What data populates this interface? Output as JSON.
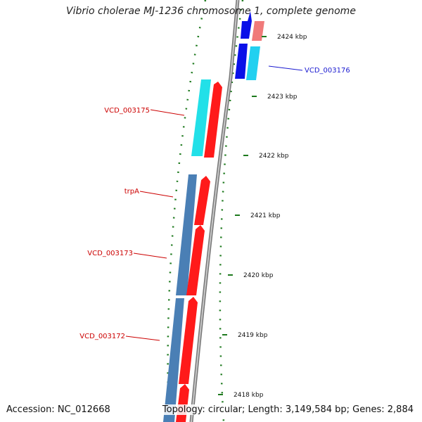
{
  "title": "Vibrio cholerae MJ-1236 chromosome 1, complete genome",
  "accession": "Accession: NC_012668",
  "topology": "Topology: circular; Length: 3,149,584 bp; Genes: 2,884",
  "colors": {
    "backbone": "#888888",
    "tick": "#1e7a1e",
    "cds_forward": "#ff1a1a",
    "cds_reverse": "#4a7fb5",
    "gene_blue": "#0a10e8",
    "gene_cyan": "#22d0f0",
    "gene_pink": "#f07a7a",
    "label_red": "#cc0000",
    "label_blue": "#1a1ad0"
  },
  "scale_ticks": [
    {
      "label": "2424 kbp"
    },
    {
      "label": "2423 kbp"
    },
    {
      "label": "2422 kbp"
    },
    {
      "label": "2421 kbp"
    },
    {
      "label": "2420 kbp"
    },
    {
      "label": "2419 kbp"
    },
    {
      "label": "2418 kbp"
    }
  ],
  "gene_labels": [
    {
      "text": "VCD_003176",
      "strand": "forward-outer"
    },
    {
      "text": "VCD_003175",
      "strand": "reverse"
    },
    {
      "text": "trpA",
      "strand": "reverse"
    },
    {
      "text": "VCD_003173",
      "strand": "reverse"
    },
    {
      "text": "VCD_003172",
      "strand": "reverse"
    }
  ]
}
